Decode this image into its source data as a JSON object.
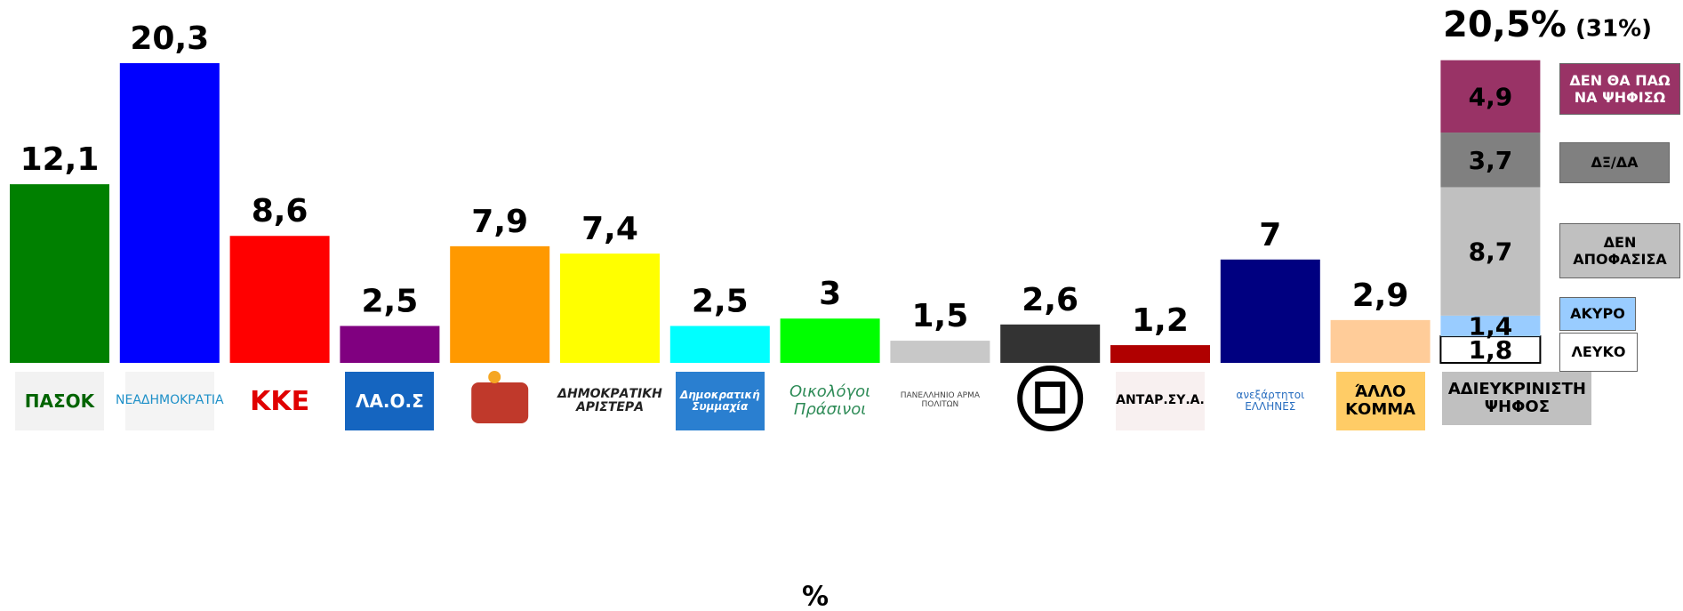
{
  "chart_data": [
    {
      "type": "bar",
      "categories": [
        "ΠΑΣΟΚ",
        "ΝΕΑΔΗΜΟΚΡΑΤΙΑ",
        "ΚΚΕ",
        "ΛΑ.Ο.Σ",
        null,
        "ΔΗΜΟΚΡΑΤΙΚΗ ΑΡΙΣΤΕΡΑ",
        "Δημοκρατική Συμμαχία",
        "Οικολόγοι Πράσινοι",
        "ΠΑΝΕΛΛΗΝΙΟ ΑΡΜΑ ΠΟΛΙΤΩΝ",
        null,
        "ΑΝΤΑΡ.ΣΥ.Α.",
        "ανεξάρτητοι ΕΛΛΗΝΕΣ",
        "ΆΛΛΟ ΚΟΜΜΑ"
      ],
      "values": [
        12.1,
        20.3,
        8.6,
        2.5,
        7.9,
        7.4,
        2.5,
        3,
        1.5,
        2.6,
        1.2,
        7,
        2.9
      ],
      "value_labels": [
        "12,1",
        "20,3",
        "8,6",
        "2,5",
        "7,9",
        "7,4",
        "2,5",
        "3",
        "1,5",
        "2,6",
        "1,2",
        "7",
        "2,9"
      ],
      "colors": [
        "#008000",
        "#0000ff",
        "#ff0000",
        "#800080",
        "#ff9900",
        "#ffff00",
        "#00ffff",
        "#00ff00",
        "#c8c8c8",
        "#333333",
        "#b00000",
        "#000080",
        "#ffcc99"
      ],
      "xlabel": "%"
    },
    {
      "type": "stacked_bar",
      "categories": [
        "ΑΔΙΕΥΚΡΙΝΙΣΤΗ ΨΗΦΟΣ"
      ],
      "series": [
        {
          "name": "ΛΕΥΚΟ",
          "color": "#ffffff",
          "values": [
            1.8
          ],
          "value_labels": [
            "1,8"
          ]
        },
        {
          "name": "ΑΚΥΡΟ",
          "color": "#99ccff",
          "values": [
            1.4
          ],
          "value_labels": [
            "1,4"
          ]
        },
        {
          "name": "ΔΕΝ ΑΠΟΦΑΣΙΣΑ",
          "color": "#c0c0c0",
          "values": [
            8.7
          ],
          "value_labels": [
            "8,7"
          ]
        },
        {
          "name": "ΔΞ/ΔΑ",
          "color": "#808080",
          "values": [
            3.7
          ],
          "value_labels": [
            "3,7"
          ]
        },
        {
          "name": "ΔΕΝ ΘΑ ΠΑΩ ΝΑ ΨΗΦΙΣΩ",
          "color": "#993366",
          "values": [
            4.9
          ],
          "value_labels": [
            "4,9"
          ]
        }
      ],
      "annotations": [
        "20,5%",
        "(31%)"
      ]
    }
  ]
}
